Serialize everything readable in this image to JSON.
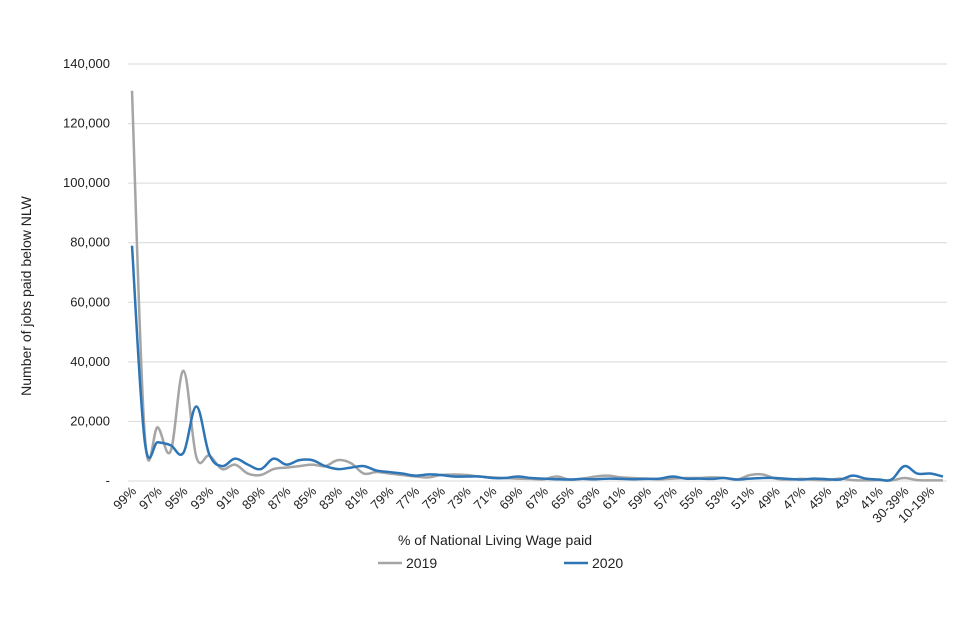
{
  "chart_data": {
    "type": "line",
    "xlabel": "% of National Living Wage paid",
    "ylabel": "Number of jobs paid below NLW",
    "ylim": [
      0,
      140000
    ],
    "yticks": [
      {
        "value": 0,
        "label": "-"
      },
      {
        "value": 20000,
        "label": "20,000"
      },
      {
        "value": 40000,
        "label": "40,000"
      },
      {
        "value": 60000,
        "label": "60,000"
      },
      {
        "value": 80000,
        "label": "80,000"
      },
      {
        "value": 100000,
        "label": "100,000"
      },
      {
        "value": 120000,
        "label": "120,000"
      },
      {
        "value": 140000,
        "label": "140,000"
      }
    ],
    "grid": true,
    "legend_position": "bottom",
    "categories": [
      "99%",
      "98%",
      "97%",
      "96%",
      "95%",
      "94%",
      "93%",
      "92%",
      "91%",
      "90%",
      "89%",
      "88%",
      "87%",
      "86%",
      "85%",
      "84%",
      "83%",
      "82%",
      "81%",
      "80%",
      "79%",
      "78%",
      "77%",
      "76%",
      "75%",
      "74%",
      "73%",
      "72%",
      "71%",
      "70%",
      "69%",
      "68%",
      "67%",
      "66%",
      "65%",
      "64%",
      "63%",
      "62%",
      "61%",
      "60%",
      "59%",
      "58%",
      "57%",
      "56%",
      "55%",
      "54%",
      "53%",
      "52%",
      "51%",
      "50%",
      "49%",
      "48%",
      "47%",
      "46%",
      "45%",
      "44%",
      "43%",
      "42%",
      "41%",
      "40%",
      "30-39%",
      "20-29%",
      "10-19%",
      "0-9%"
    ],
    "x_tick_labels": [
      "99%",
      "97%",
      "95%",
      "93%",
      "91%",
      "89%",
      "87%",
      "85%",
      "83%",
      "81%",
      "79%",
      "77%",
      "75%",
      "73%",
      "71%",
      "69%",
      "67%",
      "65%",
      "63%",
      "61%",
      "59%",
      "57%",
      "55%",
      "53%",
      "51%",
      "49%",
      "47%",
      "45%",
      "43%",
      "41%",
      "30-39%",
      "10-19%"
    ],
    "series": [
      {
        "name": "2019",
        "color": "#a5a5a5",
        "values": [
          131000,
          15000,
          18000,
          10000,
          37000,
          8000,
          8500,
          4000,
          5500,
          2500,
          2000,
          4000,
          4500,
          5000,
          5500,
          5000,
          7000,
          6000,
          2500,
          3000,
          2500,
          2000,
          1500,
          1200,
          2000,
          2200,
          2000,
          1500,
          1200,
          1000,
          800,
          700,
          600,
          1500,
          500,
          800,
          1500,
          1800,
          1200,
          1000,
          800,
          600,
          800,
          1000,
          1000,
          1200,
          1000,
          500,
          2000,
          2200,
          800,
          500,
          700,
          400,
          300,
          800,
          300,
          200,
          300,
          200,
          1000,
          300,
          200,
          200
        ]
      },
      {
        "name": "2020",
        "color": "#2e75b6",
        "values": [
          79000,
          13000,
          13000,
          12000,
          9500,
          25000,
          9000,
          5000,
          7500,
          5500,
          4000,
          7500,
          5500,
          7000,
          7000,
          5000,
          4000,
          4500,
          5000,
          3500,
          3000,
          2500,
          1800,
          2200,
          2000,
          1500,
          1500,
          1500,
          1000,
          1000,
          1500,
          1000,
          800,
          600,
          500,
          700,
          600,
          800,
          700,
          600,
          700,
          800,
          1500,
          800,
          800,
          700,
          1000,
          500,
          800,
          1000,
          1000,
          700,
          500,
          800,
          600,
          500,
          1800,
          800,
          500,
          500,
          5000,
          2500,
          2500,
          1500
        ]
      }
    ]
  }
}
